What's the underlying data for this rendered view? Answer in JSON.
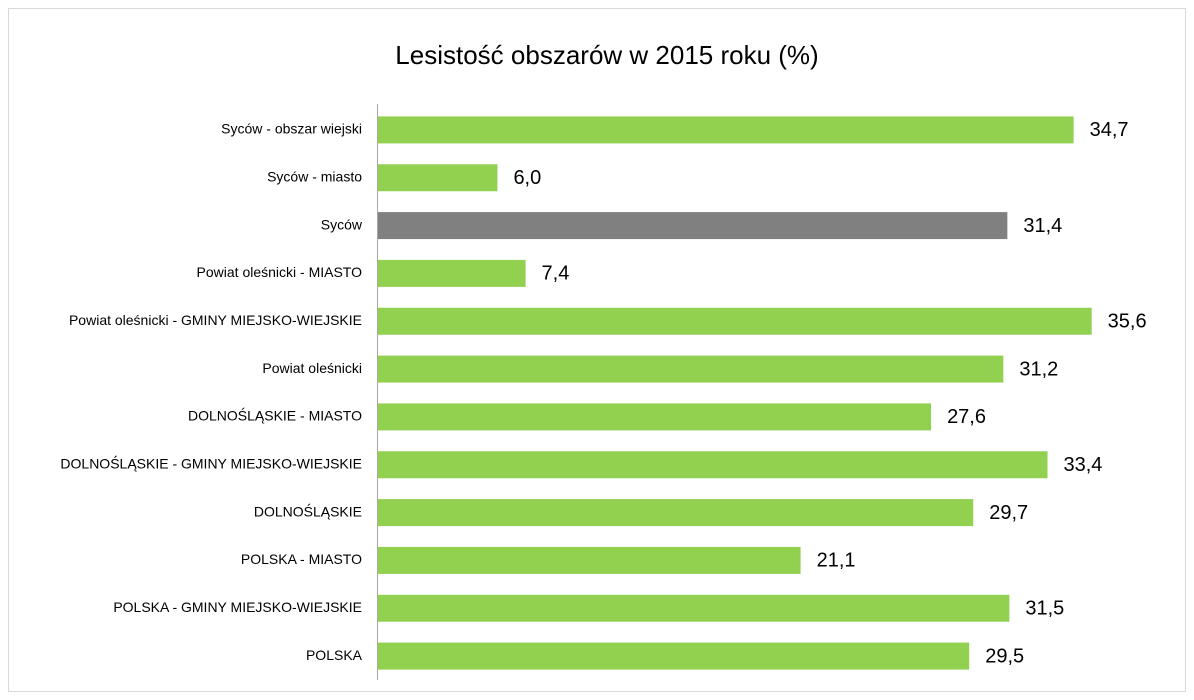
{
  "chart_data": {
    "type": "bar",
    "orientation": "horizontal",
    "title": "Lesistość obszarów w 2015 roku (%)",
    "categories": [
      "Syców - obszar wiejski",
      "Syców - miasto",
      "Syców",
      "Powiat oleśnicki - MIASTO",
      "Powiat oleśnicki - GMINY MIEJSKO-WIEJSKIE",
      "Powiat oleśnicki",
      "DOLNOŚLĄSKIE - MIASTO",
      "DOLNOŚLĄSKIE - GMINY MIEJSKO-WIEJSKIE",
      "DOLNOŚLĄSKIE",
      "POLSKA - MIASTO",
      "POLSKA - GMINY MIEJSKO-WIEJSKIE",
      "POLSKA"
    ],
    "values": [
      34.7,
      6.0,
      31.4,
      7.4,
      35.6,
      31.2,
      27.6,
      33.4,
      29.7,
      21.1,
      31.5,
      29.5
    ],
    "value_labels": [
      "34,7",
      "6,0",
      "31,4",
      "7,4",
      "35,6",
      "31,2",
      "27,6",
      "33,4",
      "29,7",
      "21,1",
      "31,5",
      "29,5"
    ],
    "colors": [
      "#92d050",
      "#92d050",
      "#808080",
      "#92d050",
      "#92d050",
      "#92d050",
      "#92d050",
      "#92d050",
      "#92d050",
      "#92d050",
      "#92d050",
      "#92d050"
    ],
    "xlim": [
      0,
      40
    ]
  }
}
